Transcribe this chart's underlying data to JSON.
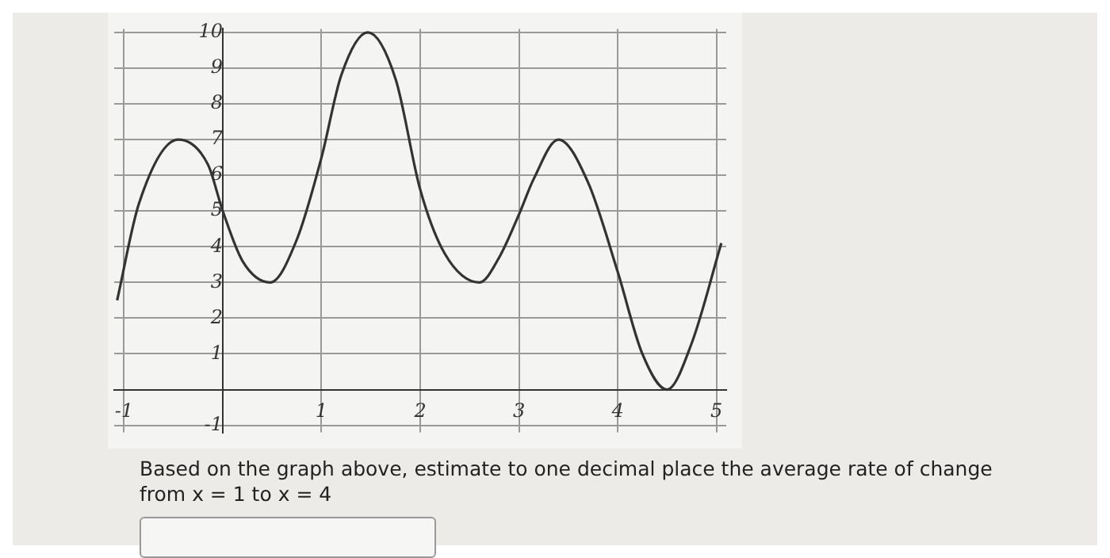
{
  "chart_data": {
    "type": "line",
    "x": [
      -1.07,
      -0.85,
      -0.45,
      -0.15,
      0,
      0.2,
      0.48,
      0.75,
      1,
      1.2,
      1.47,
      1.75,
      2,
      2.25,
      2.6,
      2.8,
      3,
      3.15,
      3.4,
      3.7,
      4,
      4.25,
      4.5,
      4.75,
      5.05
    ],
    "series": [
      {
        "color": "#333333",
        "values": [
          2.5,
          5.2,
          7,
          6.3,
          5,
          3.6,
          3,
          4.2,
          6.5,
          8.8,
          10,
          8.7,
          5.6,
          3.8,
          3,
          3.7,
          4.9,
          5.9,
          7,
          5.8,
          3.3,
          1,
          0,
          1.3,
          4.1
        ]
      }
    ],
    "xlim": [
      -1.1,
      5.1
    ],
    "ylim": [
      -1.2,
      10.1
    ],
    "xticks": [
      -1,
      {
        "value": 0,
        "label": null
      },
      1,
      2,
      3,
      4,
      5
    ],
    "yticks": [
      -1,
      {
        "value": 0,
        "label": null
      },
      1,
      2,
      3,
      4,
      5,
      6,
      7,
      8,
      9,
      10
    ],
    "grid": true,
    "legend": false,
    "marker": "none",
    "line_style": "solid",
    "annotations": [
      "Based on the graph above, estimate to one decimal place the average rate of change from x = 1 to x = 4"
    ]
  }
}
